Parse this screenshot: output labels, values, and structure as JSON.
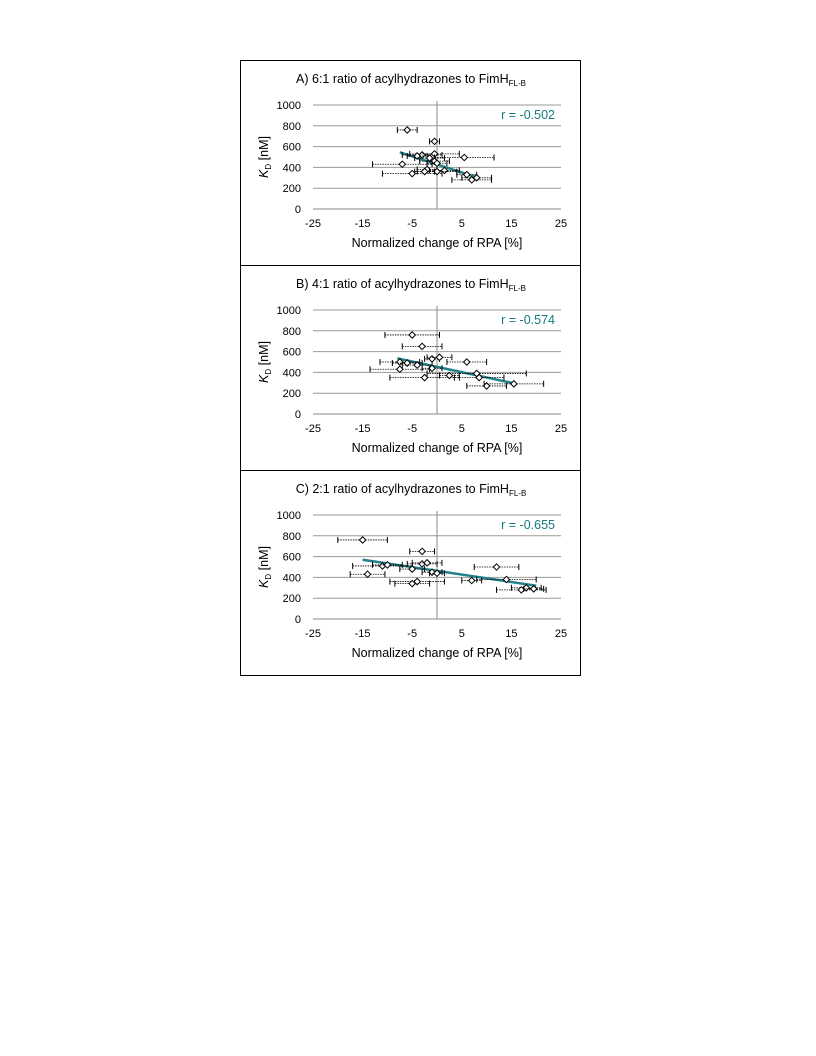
{
  "colors": {
    "trend": "#1f8288",
    "r_text": "#137a80",
    "grid": "#9a9a9a",
    "axis": "#8a8a8a",
    "marker": "#000000"
  },
  "chart_data": [
    {
      "type": "scatter",
      "title_main": "A) 6:1 ratio of acylhydrazones to FimH",
      "title_sub": "FL-B",
      "xlabel": "Normalized change of RPA [%]",
      "ylabel_main": "K",
      "ylabel_sub": "D",
      "ylabel_unit": " [nM]",
      "xlim": [
        -25,
        25
      ],
      "ylim": [
        0,
        1000
      ],
      "xticks": [
        -25,
        -15,
        -5,
        5,
        15,
        25
      ],
      "yticks": [
        0,
        200,
        400,
        600,
        800,
        1000
      ],
      "grid": "horizontal",
      "r_label": "r = -0.502",
      "trendline": {
        "x": [
          -7.5,
          8
        ],
        "y": [
          545,
          305
        ]
      },
      "points": [
        {
          "x": -6,
          "y": 760,
          "xerr": 2
        },
        {
          "x": -0.5,
          "y": 650,
          "xerr": 1
        },
        {
          "x": -3,
          "y": 520,
          "xerr": 4
        },
        {
          "x": -0.5,
          "y": 530,
          "xerr": 5
        },
        {
          "x": 5.5,
          "y": 495,
          "xerr": 6
        },
        {
          "x": -4,
          "y": 510,
          "xerr": 2
        },
        {
          "x": -1.5,
          "y": 490,
          "xerr": 3
        },
        {
          "x": -0.5,
          "y": 460,
          "xerr": 3
        },
        {
          "x": 0,
          "y": 440,
          "xerr": 2
        },
        {
          "x": -7,
          "y": 430,
          "xerr": 6
        },
        {
          "x": -2,
          "y": 380,
          "xerr": 2
        },
        {
          "x": 1.5,
          "y": 370,
          "xerr": 3
        },
        {
          "x": 0,
          "y": 360,
          "xerr": 4
        },
        {
          "x": -2.5,
          "y": 360,
          "xerr": 2
        },
        {
          "x": -5,
          "y": 340,
          "xerr": 6
        },
        {
          "x": 6,
          "y": 330,
          "xerr": 2
        },
        {
          "x": 8,
          "y": 300,
          "xerr": 3
        },
        {
          "x": 7,
          "y": 280,
          "xerr": 4
        }
      ]
    },
    {
      "type": "scatter",
      "title_main": "B) 4:1 ratio of acylhydrazones to FimH",
      "title_sub": "FL-B",
      "xlabel": "Normalized change of RPA [%]",
      "ylabel_main": "K",
      "ylabel_sub": "D",
      "ylabel_unit": " [nM]",
      "xlim": [
        -25,
        25
      ],
      "ylim": [
        0,
        1000
      ],
      "xticks": [
        -25,
        -15,
        -5,
        5,
        15,
        25
      ],
      "yticks": [
        0,
        200,
        400,
        600,
        800,
        1000
      ],
      "grid": "horizontal",
      "r_label": "r = -0.574",
      "trendline": {
        "x": [
          -8,
          16
        ],
        "y": [
          535,
          290
        ]
      },
      "points": [
        {
          "x": -5,
          "y": 760,
          "xerr": 5.5
        },
        {
          "x": -3,
          "y": 650,
          "xerr": 4
        },
        {
          "x": -1,
          "y": 530,
          "xerr": 1.5
        },
        {
          "x": 0.5,
          "y": 545,
          "xerr": 2.5
        },
        {
          "x": 6,
          "y": 500,
          "xerr": 4
        },
        {
          "x": -7.5,
          "y": 500,
          "xerr": 4
        },
        {
          "x": -6,
          "y": 490,
          "xerr": 3
        },
        {
          "x": -4,
          "y": 470,
          "xerr": 3
        },
        {
          "x": -1,
          "y": 440,
          "xerr": 2
        },
        {
          "x": -7.5,
          "y": 430,
          "xerr": 6
        },
        {
          "x": 2.5,
          "y": 370,
          "xerr": 2
        },
        {
          "x": 8,
          "y": 390,
          "xerr": 10
        },
        {
          "x": -2.5,
          "y": 350,
          "xerr": 7
        },
        {
          "x": 8.5,
          "y": 350,
          "xerr": 5
        },
        {
          "x": 10,
          "y": 270,
          "xerr": 4
        },
        {
          "x": 15.5,
          "y": 290,
          "xerr": 6
        }
      ]
    },
    {
      "type": "scatter",
      "title_main": "C) 2:1 ratio of acylhydrazones to FimH",
      "title_sub": "FL-B",
      "xlabel": "Normalized change of RPA [%]",
      "ylabel_main": "K",
      "ylabel_sub": "D",
      "ylabel_unit": " [nM]",
      "xlim": [
        -25,
        25
      ],
      "ylim": [
        0,
        1000
      ],
      "xticks": [
        -25,
        -15,
        -5,
        5,
        15,
        25
      ],
      "yticks": [
        0,
        200,
        400,
        600,
        800,
        1000
      ],
      "grid": "horizontal",
      "r_label": "r = -0.655",
      "trendline": {
        "x": [
          -15,
          20
        ],
        "y": [
          570,
          320
        ]
      },
      "points": [
        {
          "x": -15,
          "y": 760,
          "xerr": 5
        },
        {
          "x": -3,
          "y": 650,
          "xerr": 2.5
        },
        {
          "x": -11,
          "y": 510,
          "xerr": 6
        },
        {
          "x": -3,
          "y": 530,
          "xerr": 3
        },
        {
          "x": -2,
          "y": 540,
          "xerr": 3
        },
        {
          "x": 12,
          "y": 500,
          "xerr": 4.5
        },
        {
          "x": -10,
          "y": 520,
          "xerr": 3
        },
        {
          "x": -5,
          "y": 480,
          "xerr": 2.5
        },
        {
          "x": -1,
          "y": 450,
          "xerr": 2
        },
        {
          "x": 0,
          "y": 440,
          "xerr": 1.5
        },
        {
          "x": -14,
          "y": 430,
          "xerr": 3.5
        },
        {
          "x": 7,
          "y": 370,
          "xerr": 2
        },
        {
          "x": 14,
          "y": 380,
          "xerr": 6
        },
        {
          "x": -4,
          "y": 360,
          "xerr": 5.5
        },
        {
          "x": -5,
          "y": 340,
          "xerr": 3.5
        },
        {
          "x": 18,
          "y": 300,
          "xerr": 3
        },
        {
          "x": 17,
          "y": 280,
          "xerr": 5
        },
        {
          "x": 19.5,
          "y": 290,
          "xerr": 2
        }
      ]
    }
  ]
}
